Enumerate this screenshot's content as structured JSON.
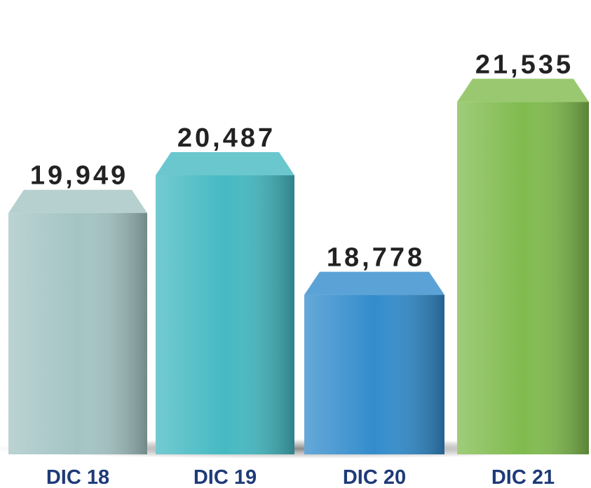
{
  "chart_data": {
    "type": "bar",
    "categories": [
      "DIC 18",
      "DIC 19",
      "DIC 20",
      "DIC 21"
    ],
    "values": [
      19949,
      20487,
      18778,
      21535
    ],
    "value_labels": [
      "19,949",
      "20,487",
      "18,778",
      "21,535"
    ],
    "colors": [
      "#a4c4c4",
      "#45b9c2",
      "#338ccc",
      "#80bb4e"
    ],
    "ylim": [
      16500,
      22000
    ]
  }
}
